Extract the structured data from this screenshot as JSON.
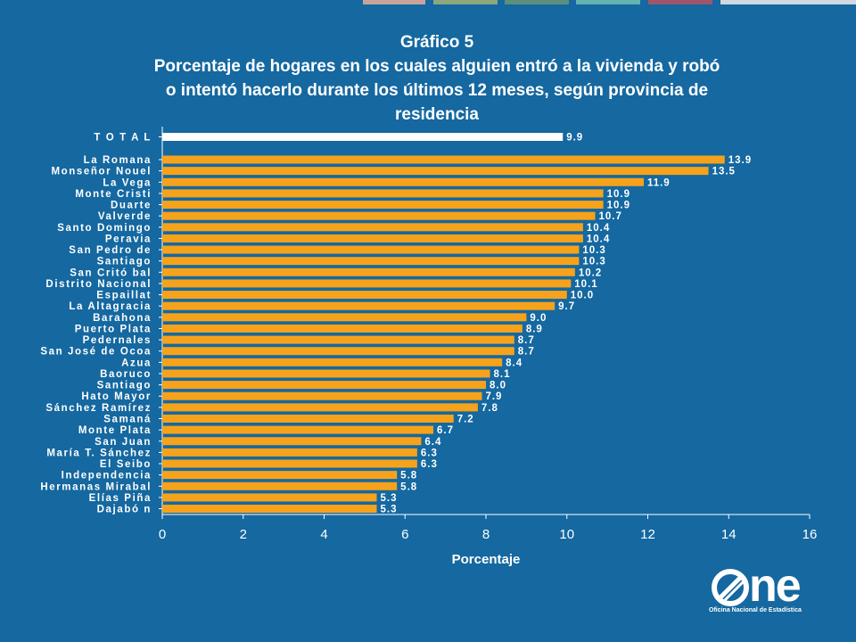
{
  "title": {
    "line1": "Gráfico 5",
    "line2": "Porcentaje de hogares en los cuales alguien entró a la vivienda y robó",
    "line3": "o intentó hacerlo durante los últimos 12 meses, según provincia de",
    "line4": "residencia"
  },
  "logo": {
    "word": "ne",
    "subtitle": "Oficina Nacional de Estadística"
  },
  "colors": {
    "background": "#1568a0",
    "bar": "#f7a21b",
    "total_bar": "#ffffff",
    "strip": [
      "#1568a0",
      "#c9a39a",
      "#8ba77c",
      "#5c8f7e",
      "#62b4b3",
      "#a0566a",
      "#cfd9df"
    ]
  },
  "chart_data": {
    "type": "bar",
    "orientation": "horizontal",
    "categories": [
      "T O T A L",
      "La Romana",
      "Monseñor Nouel",
      "La Vega",
      "Monte Cristi",
      "Duarte",
      "Valverde",
      "Santo Domingo",
      "Peravia",
      "San Pedro de",
      "Santiago",
      "San Critó bal",
      "Distrito Nacional",
      "Espaillat",
      "La Altagracia",
      "Barahona",
      "Puerto Plata",
      "Pedernales",
      "San José de Ocoa",
      "Azua",
      "Baoruco",
      "Santiago",
      "Hato Mayor",
      "Sánchez Ramírez",
      "Samaná",
      "Monte Plata",
      "San Juan",
      "María T. Sánchez",
      "El Seibo",
      "Independencia",
      "Hermanas Mirabal",
      "Elías Piña",
      "Dajabó n"
    ],
    "values": [
      9.9,
      13.9,
      13.5,
      11.9,
      10.9,
      10.9,
      10.7,
      10.4,
      10.4,
      10.3,
      10.3,
      10.2,
      10.1,
      10.0,
      9.7,
      9.0,
      8.9,
      8.7,
      8.7,
      8.4,
      8.1,
      8.0,
      7.9,
      7.8,
      7.2,
      6.7,
      6.4,
      6.3,
      6.3,
      5.8,
      5.8,
      5.3,
      5.3
    ],
    "value_labels": [
      "9.9",
      "13.9",
      "13.5",
      "11.9",
      "10.9",
      "10.9",
      "10.7",
      "10.4",
      "10.4",
      "10.3",
      "10.3",
      "10.2",
      "10.1",
      "10.0",
      "9.7",
      "9.0",
      "8.9",
      "8.7",
      "8.7",
      "8.4",
      "8.1",
      "8.0",
      "7.9",
      "7.8",
      "7.2",
      "6.7",
      "6.4",
      "6.3",
      "6.3",
      "5.8",
      "5.8",
      "5.3",
      "5.3"
    ],
    "xlabel": "Porcentaje",
    "xlim": [
      0,
      16
    ],
    "xticks": [
      0,
      2,
      4,
      6,
      8,
      10,
      12,
      14,
      16
    ],
    "grid": false,
    "legend": false
  }
}
